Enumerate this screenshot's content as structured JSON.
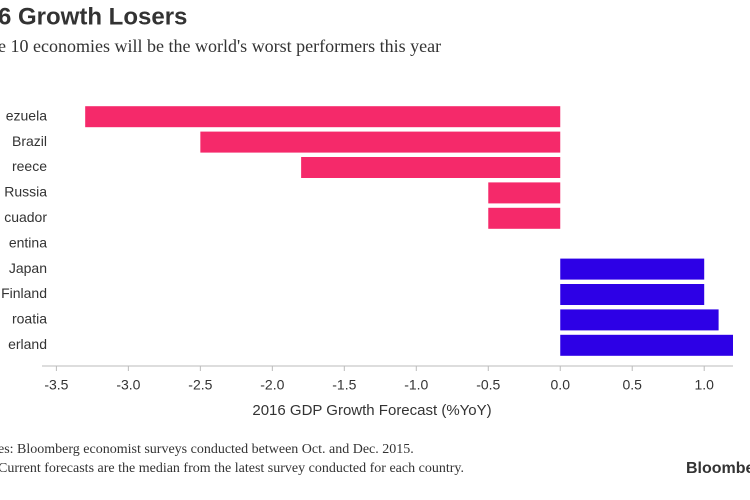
{
  "chart_data": {
    "type": "bar",
    "orientation": "horizontal",
    "title": "6 Growth Losers",
    "subtitle": "e 10 economies will be the world's worst performers this year",
    "categories": [
      "ezuela",
      "Brazil",
      "reece",
      "Russia",
      "cuador",
      "entina",
      "Japan",
      "Finland",
      "roatia",
      "erland"
    ],
    "values": [
      -3.3,
      -2.5,
      -1.8,
      -0.5,
      -0.5,
      0,
      1.0,
      1.0,
      1.1,
      1.2
    ],
    "colors": [
      "#f5296a",
      "#f5296a",
      "#f5296a",
      "#f5296a",
      "#f5296a",
      "#f5296a",
      "#2d00e6",
      "#2d00e6",
      "#2d00e6",
      "#2d00e6"
    ],
    "xlabel": "2016 GDP Growth Forecast (%YoY)",
    "xlim": [
      -3.6,
      1.2
    ],
    "xticks": [
      -3.5,
      {
        "value": -3,
        "label": "-3.0"
      },
      -2.5,
      {
        "value": -2,
        "label": "-2.0"
      },
      -1.5,
      {
        "value": -1,
        "label": "-1.0"
      },
      -0.5,
      {
        "value": 0,
        "label": "0.0"
      },
      0.5,
      {
        "value": 1,
        "label": "1.0"
      }
    ],
    "notes": [
      "es: Bloomberg economist surveys conducted between Oct. and Dec. 2015.",
      "Current forecasts are the median from the latest survey conducted for each country."
    ],
    "source": "Bloomberg"
  }
}
